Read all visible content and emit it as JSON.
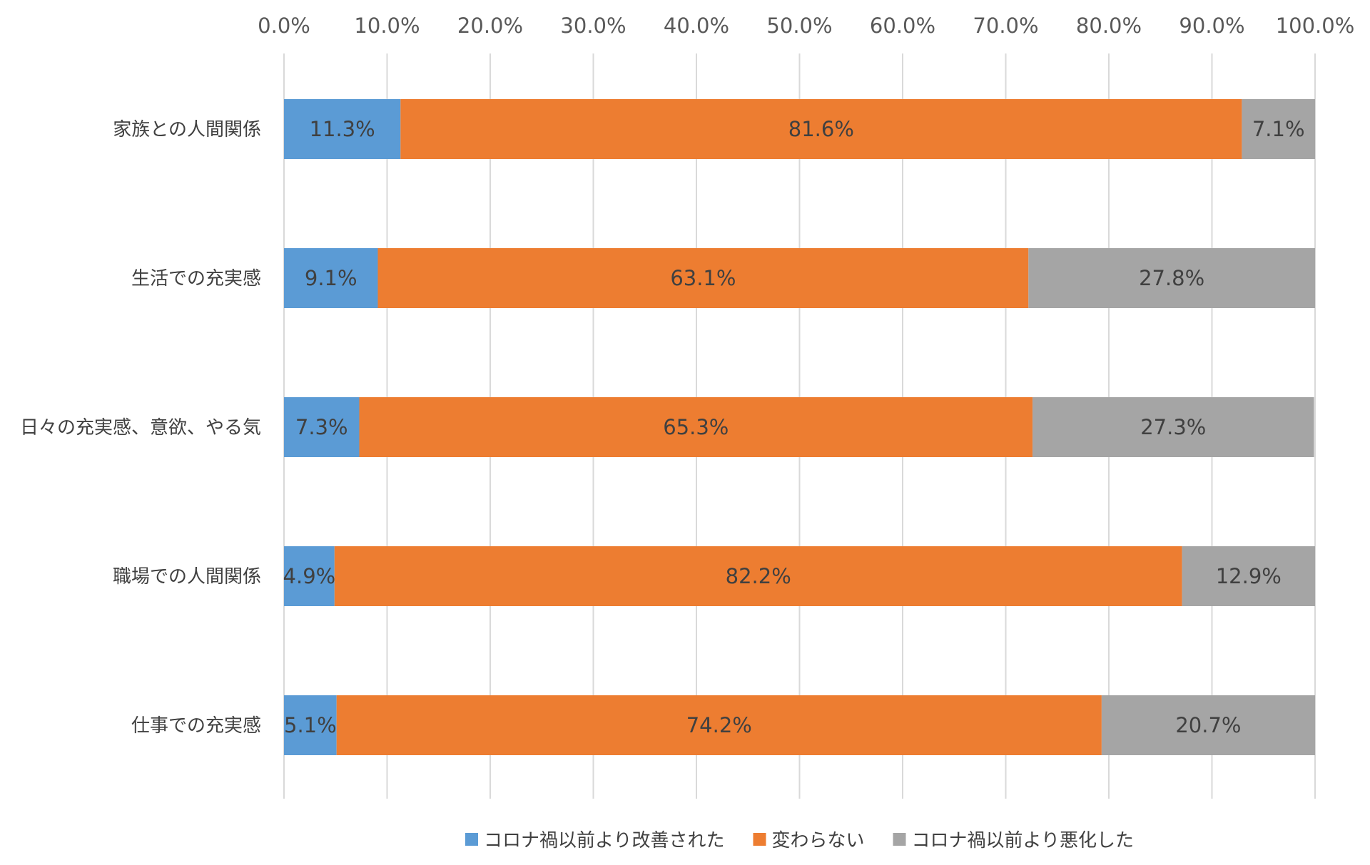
{
  "chart_data": {
    "type": "bar",
    "orientation": "horizontal",
    "stacked": "percent",
    "categories": [
      "家族との人間関係",
      "生活での充実感",
      "日々の充実感、意欲、やる気",
      "職場での人間関係",
      "仕事での充実感"
    ],
    "series": [
      {
        "name": "コロナ禍以前より改善された",
        "color": "#5B9BD5",
        "values": [
          11.3,
          9.1,
          7.3,
          4.9,
          5.1
        ]
      },
      {
        "name": "変わらない",
        "color": "#ED7D31",
        "values": [
          81.6,
          63.1,
          65.3,
          82.2,
          74.2
        ]
      },
      {
        "name": "コロナ禍以前より悪化した",
        "color": "#A5A5A5",
        "values": [
          7.1,
          27.8,
          27.3,
          12.9,
          20.7
        ]
      }
    ],
    "data_labels": [
      [
        "11.3%",
        "81.6%",
        "7.1%"
      ],
      [
        "9.1%",
        "63.1%",
        "27.8%"
      ],
      [
        "7.3%",
        "65.3%",
        "27.3%"
      ],
      [
        "4.9%",
        "82.2%",
        "12.9%"
      ],
      [
        "5.1%",
        "74.2%",
        "20.7%"
      ]
    ],
    "xticks": [
      "0.0%",
      "10.0%",
      "20.0%",
      "30.0%",
      "40.0%",
      "50.0%",
      "60.0%",
      "70.0%",
      "80.0%",
      "90.0%",
      "100.0%"
    ],
    "xlim": [
      0,
      100
    ],
    "x_axis_position": "top",
    "grid": true,
    "legend_position": "bottom",
    "gridline_color": "#D9D9D9"
  }
}
